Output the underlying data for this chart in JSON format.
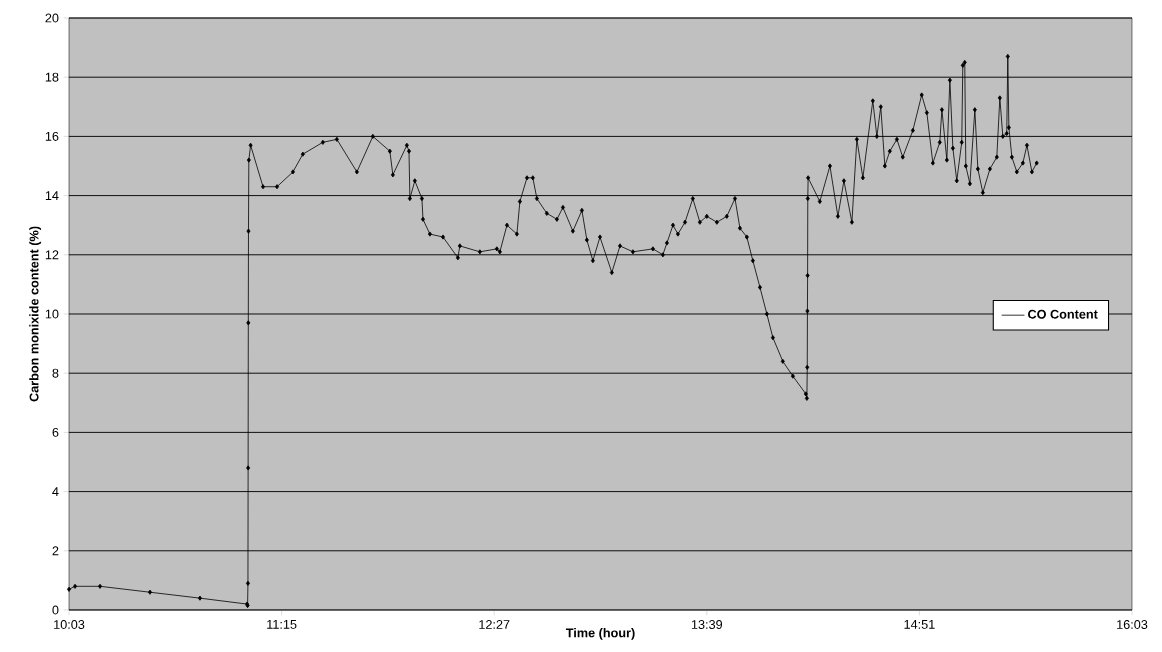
{
  "chart_data": {
    "type": "line",
    "xlabel": "Time (hour)",
    "ylabel": "Carbon monixide content (%)",
    "xlim": [
      10.05,
      16.05
    ],
    "xticks": [
      {
        "value": 10.05,
        "label": "10:03"
      },
      {
        "value": 11.25,
        "label": "11:15"
      },
      {
        "value": 12.45,
        "label": "12:27"
      },
      {
        "value": 13.65,
        "label": "13:39"
      },
      {
        "value": 14.85,
        "label": "14:51"
      },
      {
        "value": 16.05,
        "label": "16:03"
      }
    ],
    "ylim": [
      0,
      20
    ],
    "yticks": [
      0,
      2,
      4,
      6,
      8,
      10,
      12,
      14,
      16,
      18,
      20
    ],
    "grid": "y",
    "legend": "right",
    "marker": "diamond",
    "line_style": "solid",
    "series": [
      {
        "name": "CO Content",
        "color": "#000000",
        "x": [
          10.05,
          10.084,
          10.225,
          10.507,
          10.789,
          11.055,
          11.058,
          11.06,
          11.061,
          11.062,
          11.063,
          11.065,
          11.075,
          11.145,
          11.224,
          11.314,
          11.37,
          11.483,
          11.562,
          11.675,
          11.765,
          11.861,
          11.878,
          11.957,
          11.969,
          11.974,
          12.002,
          12.042,
          12.048,
          12.087,
          12.161,
          12.245,
          12.256,
          12.369,
          12.465,
          12.482,
          12.522,
          12.578,
          12.595,
          12.635,
          12.668,
          12.691,
          12.747,
          12.804,
          12.838,
          12.894,
          12.945,
          12.973,
          13.007,
          13.047,
          13.114,
          13.16,
          13.233,
          13.346,
          13.402,
          13.425,
          13.459,
          13.487,
          13.527,
          13.571,
          13.611,
          13.65,
          13.707,
          13.763,
          13.809,
          13.837,
          13.876,
          13.91,
          13.95,
          13.989,
          14.023,
          14.079,
          14.136,
          14.209,
          14.215,
          14.217,
          14.218,
          14.219,
          14.22,
          14.222,
          14.288,
          14.345,
          14.39,
          14.424,
          14.469,
          14.497,
          14.531,
          14.587,
          14.61,
          14.632,
          14.655,
          14.683,
          14.723,
          14.756,
          14.813,
          14.863,
          14.892,
          14.926,
          14.965,
          14.977,
          15.005,
          15.022,
          15.039,
          15.061,
          15.089,
          15.095,
          15.106,
          15.112,
          15.135,
          15.163,
          15.18,
          15.208,
          15.248,
          15.287,
          15.304,
          15.321,
          15.343,
          15.349,
          15.355,
          15.372,
          15.4,
          15.434,
          15.457,
          15.485,
          15.512
        ],
        "values": [
          0.7,
          0.8,
          0.8,
          0.6,
          0.4,
          0.2,
          0.15,
          0.9,
          4.8,
          9.7,
          12.8,
          15.2,
          15.7,
          14.3,
          14.3,
          14.8,
          15.4,
          15.8,
          15.9,
          14.8,
          16.0,
          15.5,
          14.7,
          15.7,
          15.5,
          13.9,
          14.5,
          13.9,
          13.2,
          12.7,
          12.6,
          11.9,
          12.3,
          12.1,
          12.2,
          12.1,
          13.0,
          12.7,
          13.8,
          14.6,
          14.6,
          13.9,
          13.4,
          13.2,
          13.6,
          12.8,
          13.5,
          12.5,
          11.8,
          12.6,
          11.4,
          12.3,
          12.1,
          12.2,
          12.0,
          12.4,
          13.0,
          12.7,
          13.1,
          13.9,
          13.1,
          13.3,
          13.1,
          13.3,
          13.9,
          12.9,
          12.6,
          11.8,
          10.9,
          10.0,
          9.2,
          8.4,
          7.9,
          7.3,
          7.15,
          8.2,
          10.1,
          11.3,
          13.9,
          14.6,
          13.8,
          15.0,
          13.3,
          14.5,
          13.1,
          15.9,
          14.6,
          17.2,
          16.0,
          17.0,
          15.0,
          15.5,
          15.9,
          15.3,
          16.2,
          17.4,
          16.8,
          15.1,
          15.8,
          16.9,
          15.2,
          17.9,
          15.6,
          14.5,
          15.8,
          18.4,
          18.5,
          15.0,
          14.4,
          16.9,
          14.9,
          14.1,
          14.9,
          15.3,
          17.3,
          16.0,
          16.1,
          18.7,
          16.3,
          15.3,
          14.8,
          15.1,
          15.7,
          14.8,
          15.1
        ]
      }
    ]
  }
}
